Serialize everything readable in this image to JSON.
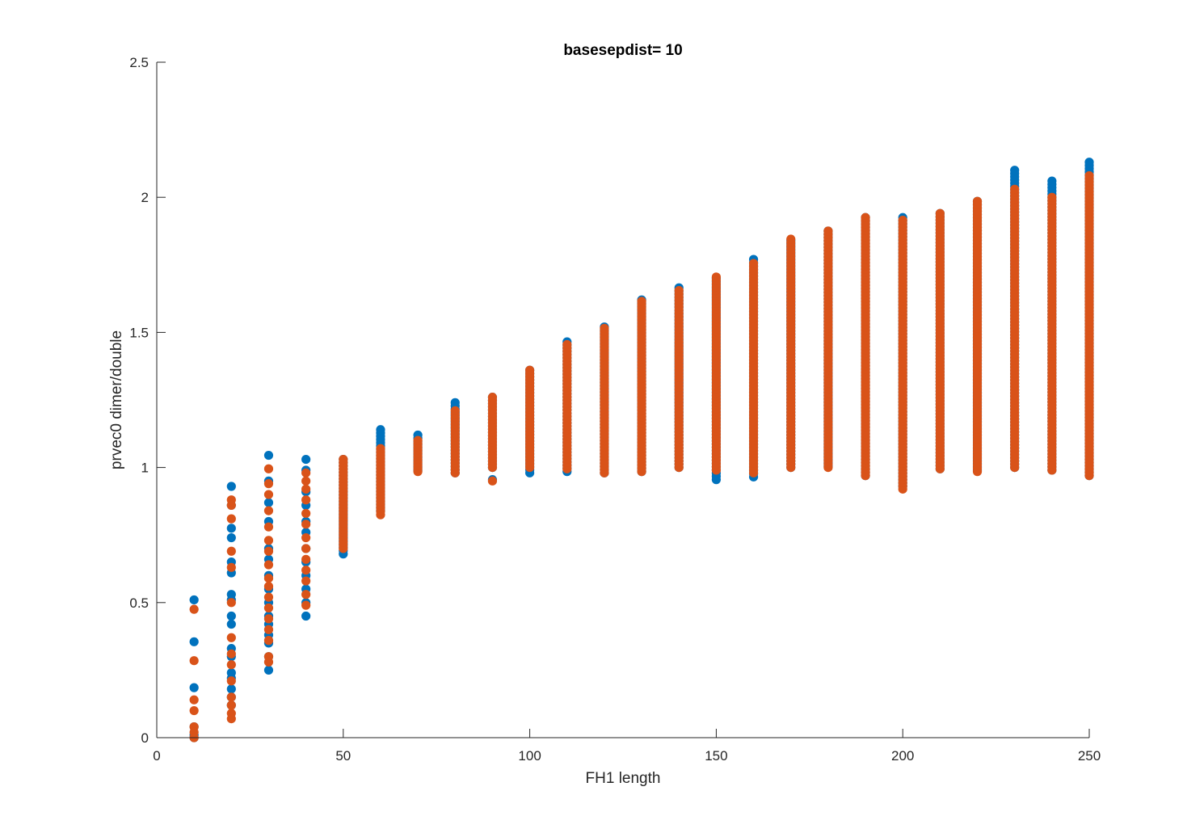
{
  "chart_data": {
    "type": "scatter",
    "title": "basesepdist= 10",
    "xlabel": "FH1 length",
    "ylabel": "prvec0 dimer/double",
    "xlim": [
      0,
      250
    ],
    "ylim": [
      0,
      2.5
    ],
    "xticks": [
      0,
      50,
      100,
      150,
      200,
      250
    ],
    "yticks": [
      0,
      0.5,
      1,
      1.5,
      2,
      2.5
    ],
    "xtick_labels": [
      "0",
      "50",
      "100",
      "150",
      "200",
      "250"
    ],
    "ytick_labels": [
      "0",
      "0.5",
      "1",
      "1.5",
      "2",
      "2.5"
    ],
    "grid": false,
    "legend": "none",
    "series": [
      {
        "color": "#0072BD",
        "columns": [
          {
            "x": 10,
            "discrete": [
              0.51,
              0.355,
              0.185,
              0.04,
              0.01,
              0.0
            ]
          },
          {
            "x": 20,
            "discrete": [
              0.93,
              0.86,
              0.775,
              0.74,
              0.65,
              0.61,
              0.53,
              0.51,
              0.45,
              0.42,
              0.33,
              0.3,
              0.24,
              0.22,
              0.18,
              0.15,
              0.12
            ]
          },
          {
            "x": 30,
            "discrete": [
              1.045,
              0.95,
              0.87,
              0.8,
              0.7,
              0.66,
              0.6,
              0.55,
              0.5,
              0.45,
              0.42,
              0.38,
              0.35,
              0.3,
              0.25
            ]
          },
          {
            "x": 40,
            "discrete": [
              1.03,
              0.99,
              0.91,
              0.86,
              0.8,
              0.76,
              0.7,
              0.65,
              0.6,
              0.55,
              0.5,
              0.45
            ]
          },
          {
            "x": 50,
            "min": 0.68,
            "max": 1.03
          },
          {
            "x": 60,
            "min": 0.84,
            "max": 1.14
          },
          {
            "x": 70,
            "min": 0.99,
            "max": 1.12
          },
          {
            "x": 80,
            "min": 0.98,
            "max": 1.24
          },
          {
            "x": 90,
            "min": 1.0,
            "max": 1.26,
            "discrete": [
              0.955
            ]
          },
          {
            "x": 100,
            "min": 0.98,
            "max": 1.36
          },
          {
            "x": 110,
            "min": 0.985,
            "max": 1.465
          },
          {
            "x": 120,
            "min": 0.98,
            "max": 1.52
          },
          {
            "x": 130,
            "min": 0.985,
            "max": 1.62
          },
          {
            "x": 140,
            "min": 1.0,
            "max": 1.665
          },
          {
            "x": 150,
            "min": 0.955,
            "max": 1.7
          },
          {
            "x": 160,
            "min": 0.965,
            "max": 1.77
          },
          {
            "x": 170,
            "min": 1.0,
            "max": 1.84
          },
          {
            "x": 180,
            "min": 1.005,
            "max": 1.875
          },
          {
            "x": 190,
            "min": 0.97,
            "max": 1.925
          },
          {
            "x": 200,
            "min": 0.93,
            "max": 1.925
          },
          {
            "x": 210,
            "min": 0.995,
            "max": 1.94
          },
          {
            "x": 220,
            "min": 0.99,
            "max": 1.985
          },
          {
            "x": 230,
            "min": 1.0,
            "max": 2.1
          },
          {
            "x": 240,
            "min": 0.99,
            "max": 2.06
          },
          {
            "x": 250,
            "min": 0.97,
            "max": 2.13
          }
        ]
      },
      {
        "color": "#D95319",
        "columns": [
          {
            "x": 10,
            "discrete": [
              0.475,
              0.285,
              0.14,
              0.1,
              0.04,
              0.02,
              0.0
            ]
          },
          {
            "x": 20,
            "discrete": [
              0.88,
              0.86,
              0.81,
              0.69,
              0.63,
              0.5,
              0.37,
              0.31,
              0.27,
              0.21,
              0.15,
              0.12,
              0.09,
              0.07
            ]
          },
          {
            "x": 30,
            "discrete": [
              0.995,
              0.94,
              0.9,
              0.84,
              0.78,
              0.73,
              0.69,
              0.64,
              0.59,
              0.56,
              0.52,
              0.48,
              0.44,
              0.4,
              0.36,
              0.3,
              0.28
            ]
          },
          {
            "x": 40,
            "discrete": [
              0.98,
              0.95,
              0.92,
              0.88,
              0.83,
              0.79,
              0.74,
              0.7,
              0.66,
              0.62,
              0.58,
              0.53,
              0.49
            ]
          },
          {
            "x": 50,
            "min": 0.7,
            "max": 1.03
          },
          {
            "x": 60,
            "min": 0.825,
            "max": 1.07
          },
          {
            "x": 70,
            "min": 0.985,
            "max": 1.1
          },
          {
            "x": 80,
            "min": 0.98,
            "max": 1.21
          },
          {
            "x": 90,
            "min": 1.0,
            "max": 1.26,
            "discrete": [
              0.95
            ]
          },
          {
            "x": 100,
            "min": 1.0,
            "max": 1.36
          },
          {
            "x": 110,
            "min": 0.995,
            "max": 1.455
          },
          {
            "x": 120,
            "min": 0.98,
            "max": 1.515
          },
          {
            "x": 130,
            "min": 0.985,
            "max": 1.615
          },
          {
            "x": 140,
            "min": 1.0,
            "max": 1.655
          },
          {
            "x": 150,
            "min": 0.99,
            "max": 1.705
          },
          {
            "x": 160,
            "min": 0.98,
            "max": 1.755
          },
          {
            "x": 170,
            "min": 1.0,
            "max": 1.845
          },
          {
            "x": 180,
            "min": 1.0,
            "max": 1.875
          },
          {
            "x": 190,
            "min": 0.97,
            "max": 1.925
          },
          {
            "x": 200,
            "min": 0.92,
            "max": 1.915
          },
          {
            "x": 210,
            "min": 0.995,
            "max": 1.94
          },
          {
            "x": 220,
            "min": 0.985,
            "max": 1.985
          },
          {
            "x": 230,
            "min": 1.0,
            "max": 2.03
          },
          {
            "x": 240,
            "min": 0.99,
            "max": 2.0
          },
          {
            "x": 250,
            "min": 0.97,
            "max": 2.08
          }
        ]
      }
    ]
  }
}
